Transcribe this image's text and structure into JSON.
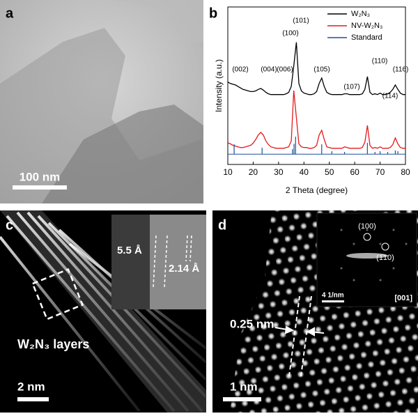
{
  "panels": {
    "a": {
      "label": "a",
      "scale_bar": "100 nm"
    },
    "b": {
      "label": "b"
    },
    "c": {
      "label": "c",
      "inset_spacing_1": "5.5 Å",
      "inset_spacing_2": "2.14 Å",
      "caption": "W₂N₃ layers",
      "scale_bar": "2 nm"
    },
    "d": {
      "label": "d",
      "spacing": "0.25 nm",
      "scale_bar": "1 nm",
      "spot_1": "(100)",
      "spot_2": "(1̄10)",
      "inset_scale_bar": "4 1/nm",
      "zone_axis": "[001]"
    }
  },
  "chart_data": {
    "type": "line",
    "xlabel": "2 Theta (degree)",
    "ylabel": "Intensity (a.u.)",
    "xlim": [
      10,
      80
    ],
    "xticks": [
      10,
      20,
      30,
      40,
      50,
      60,
      70,
      80
    ],
    "ylim": [
      -7,
      100
    ],
    "legend": "upper right",
    "peak_labels": [
      "(002)",
      "(004)",
      "(006)",
      "(100)",
      "(101)",
      "(105)",
      "(107)",
      "(110)",
      "(114)",
      "(116)"
    ],
    "x": [
      10,
      11,
      12,
      13,
      14,
      15,
      16,
      17,
      18,
      19,
      20,
      21,
      22,
      23,
      24,
      25,
      26,
      27,
      28,
      29,
      30,
      31,
      32,
      33,
      34,
      35,
      36,
      37,
      38,
      39,
      40,
      41,
      42,
      43,
      44,
      45,
      46,
      47,
      48,
      49,
      50,
      51,
      52,
      53,
      54,
      55,
      56,
      57,
      58,
      59,
      60,
      61,
      62,
      63,
      64,
      65,
      66,
      67,
      68,
      69,
      70,
      71,
      72,
      73,
      74,
      75,
      76,
      77,
      78,
      79,
      80
    ],
    "series": [
      {
        "name": "W₂N₃",
        "color": "#000000",
        "values": [
          49,
          48,
          47.5,
          47,
          46,
          45,
          44,
          43.5,
          43,
          42.5,
          42.5,
          43,
          44,
          44.6,
          43.5,
          42,
          41,
          40.5,
          40.5,
          40.5,
          40.5,
          40.5,
          40.5,
          41,
          42,
          46,
          60,
          76,
          48,
          43,
          41.5,
          41,
          40.5,
          40.5,
          41,
          42.5,
          48,
          51.7,
          46,
          42,
          41,
          40.5,
          40.5,
          40.5,
          40.5,
          40.5,
          41,
          41,
          40.5,
          40.5,
          40.5,
          40.5,
          40.5,
          41,
          44,
          52.7,
          42,
          40.5,
          41,
          40.5,
          41.5,
          40.5,
          40.5,
          41,
          42,
          44,
          47,
          44,
          41.5,
          40.5,
          40.5
        ]
      },
      {
        "name": "NV-W₂N₃",
        "color": "#e41a1c",
        "values": [
          7.7,
          7,
          6,
          5.5,
          5,
          4.5,
          4.5,
          5,
          5.5,
          6,
          7.5,
          10,
          13,
          14.8,
          13,
          9,
          6.5,
          5,
          4.5,
          4,
          4,
          4,
          4,
          4.5,
          5,
          9,
          43.2,
          25,
          7,
          5,
          4.5,
          4.5,
          4,
          4,
          4.5,
          6,
          13,
          16.2,
          10,
          5,
          4.5,
          4,
          4,
          4,
          4,
          4,
          5,
          4.5,
          4,
          4,
          4,
          4,
          4,
          4.5,
          8,
          19.5,
          6,
          4,
          4.5,
          4,
          5,
          4,
          4,
          4,
          4.5,
          6.5,
          11,
          7,
          4.5,
          4,
          4
        ]
      },
      {
        "name": "Standard",
        "color": "#1f4e9c",
        "style": "stick",
        "x": [
          12.5,
          23.5,
          35.5,
          36.1,
          36.7,
          47,
          51,
          56,
          65,
          68,
          70,
          73,
          76,
          77
        ],
        "values": [
          6.7,
          4.4,
          3.4,
          7,
          11.9,
          6.7,
          2,
          1.5,
          7.7,
          1.5,
          2,
          1.5,
          2.5,
          2
        ]
      }
    ]
  }
}
